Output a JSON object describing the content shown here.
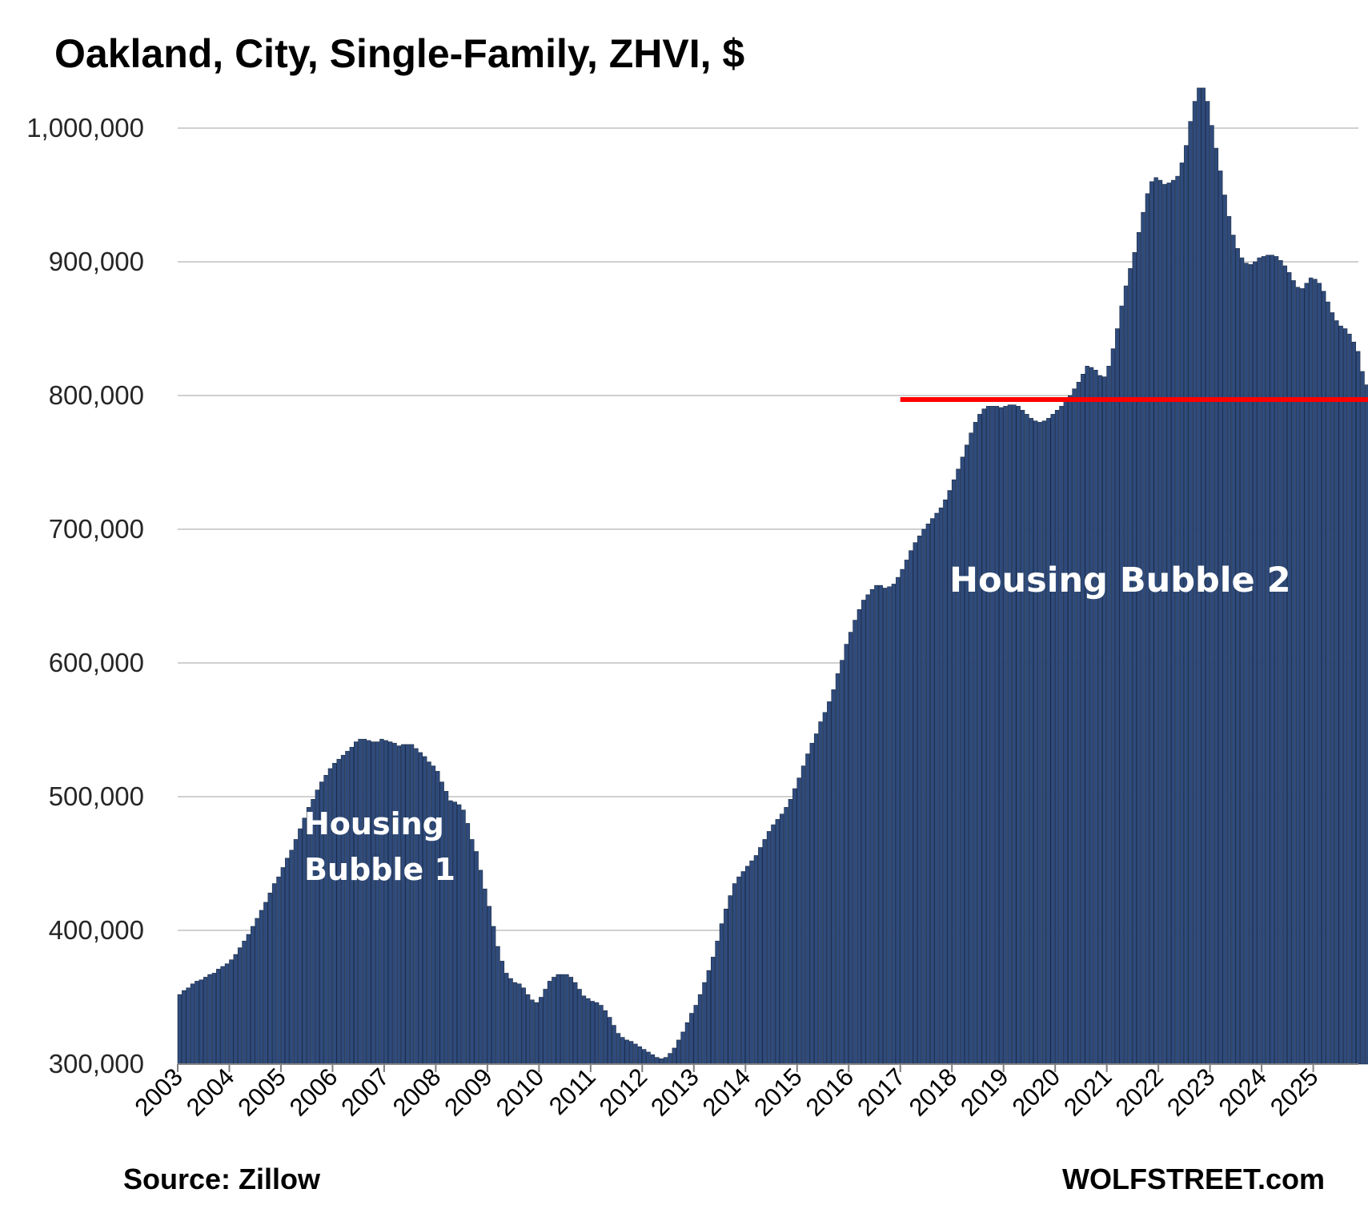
{
  "chart_data": {
    "type": "bar",
    "title": "Oakland, City, Single-Family, ZHVI, $",
    "xlabel": "",
    "ylabel": "",
    "ylim": [
      300000,
      1040000
    ],
    "yticks": [
      300000,
      400000,
      500000,
      600000,
      700000,
      800000,
      900000,
      1000000
    ],
    "ytick_labels": [
      "300,000",
      "400,000",
      "500,000",
      "600,000",
      "700,000",
      "800,000",
      "900,000",
      "1,000,000"
    ],
    "xtick_labels": [
      "2003",
      "2004",
      "2005",
      "2006",
      "2007",
      "2008",
      "2009",
      "2010",
      "2011",
      "2012",
      "2013",
      "2014",
      "2015",
      "2016",
      "2017",
      "2018",
      "2019",
      "2020",
      "2021",
      "2022",
      "2023",
      "2024",
      "2025"
    ],
    "grid": true,
    "bar_color": "#2f4b7c",
    "start": "2003-01",
    "frequency": "monthly",
    "values": [
      352000,
      355000,
      357000,
      360000,
      362000,
      363000,
      365000,
      367000,
      368000,
      371000,
      373000,
      375000,
      378000,
      382000,
      387000,
      392000,
      397000,
      403000,
      409000,
      415000,
      421000,
      428000,
      435000,
      440000,
      447000,
      454000,
      460000,
      468000,
      476000,
      484000,
      492000,
      498000,
      505000,
      511000,
      516000,
      521000,
      525000,
      528000,
      531000,
      534000,
      537000,
      541000,
      543000,
      543000,
      542000,
      541000,
      541000,
      543000,
      542000,
      541000,
      540000,
      538000,
      539000,
      539000,
      539000,
      536000,
      533000,
      530000,
      526000,
      523000,
      519000,
      511000,
      504000,
      497000,
      496000,
      494000,
      490000,
      480000,
      468000,
      459000,
      445000,
      431000,
      418000,
      403000,
      388000,
      377000,
      368000,
      364000,
      361000,
      360000,
      357000,
      352000,
      348000,
      346000,
      350000,
      356000,
      362000,
      365000,
      367000,
      367000,
      367000,
      365000,
      361000,
      356000,
      351000,
      349000,
      347000,
      346000,
      344000,
      340000,
      335000,
      329000,
      323000,
      320000,
      318000,
      317000,
      315000,
      313000,
      311000,
      309000,
      307000,
      305000,
      304000,
      305000,
      308000,
      312000,
      318000,
      324000,
      331000,
      338000,
      344000,
      352000,
      361000,
      370000,
      380000,
      392000,
      405000,
      416000,
      426000,
      435000,
      440000,
      444000,
      448000,
      452000,
      456000,
      462000,
      468000,
      474000,
      479000,
      483000,
      487000,
      492000,
      498000,
      506000,
      514000,
      523000,
      532000,
      540000,
      547000,
      556000,
      563000,
      571000,
      580000,
      592000,
      602000,
      614000,
      623000,
      632000,
      640000,
      647000,
      651000,
      655000,
      658000,
      658000,
      656000,
      657000,
      659000,
      664000,
      670000,
      677000,
      684000,
      690000,
      695000,
      700000,
      704000,
      708000,
      712000,
      716000,
      722000,
      729000,
      737000,
      745000,
      754000,
      763000,
      772000,
      780000,
      786000,
      790000,
      792000,
      792000,
      792000,
      791000,
      792000,
      793000,
      793000,
      792000,
      789000,
      786000,
      783000,
      781000,
      780000,
      781000,
      783000,
      786000,
      789000,
      792000,
      796000,
      800000,
      805000,
      810000,
      816000,
      822000,
      821000,
      819000,
      815000,
      814000,
      822000,
      835000,
      850000,
      867000,
      882000,
      895000,
      907000,
      922000,
      937000,
      951000,
      960000,
      963000,
      961000,
      958000,
      959000,
      961000,
      964000,
      974000,
      987000,
      1005000,
      1020000,
      1030000,
      1030000,
      1020000,
      1002000,
      985000,
      968000,
      950000,
      934000,
      920000,
      910000,
      903000,
      899000,
      898000,
      900000,
      903000,
      904000,
      905000,
      905000,
      904000,
      901000,
      897000,
      892000,
      886000,
      881000,
      880000,
      884000,
      888000,
      887000,
      884000,
      878000,
      870000,
      862000,
      856000,
      852000,
      850000,
      846000,
      840000,
      833000,
      818000,
      808000,
      796000,
      787000
    ],
    "reference_line": {
      "value": 797000,
      "from": "2017-01",
      "color": "#ff0000"
    },
    "annotations": [
      {
        "lines": [
          "Housing",
          "Bubble 1"
        ],
        "color": "#ffffff"
      },
      {
        "lines": [
          "Housing Bubble 2"
        ],
        "color": "#ffffff"
      }
    ]
  },
  "footer": {
    "source": "Source: Zillow",
    "brand": "WOLFSTREET.com"
  }
}
